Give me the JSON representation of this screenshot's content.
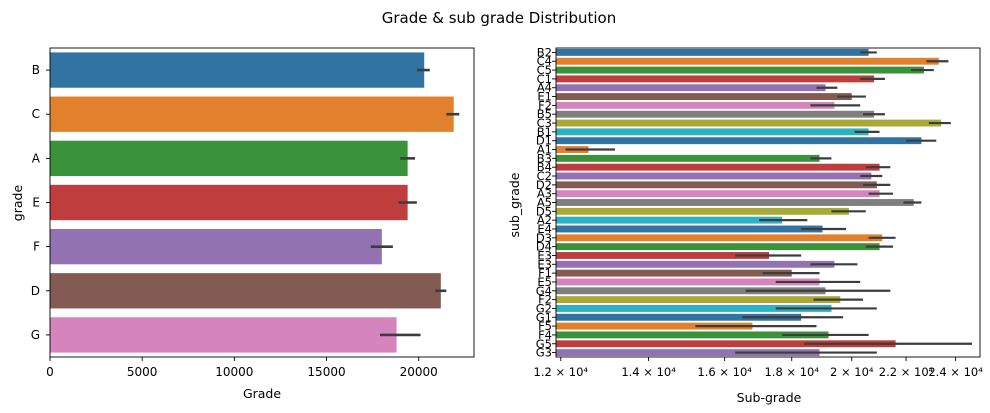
{
  "figure_title": "Grade & sub grade Distribution",
  "chart_data": [
    {
      "type": "bar",
      "orientation": "horizontal",
      "categories": [
        "B",
        "C",
        "A",
        "E",
        "F",
        "D",
        "G"
      ],
      "values": [
        20300,
        21900,
        19400,
        19400,
        18000,
        21200,
        18800
      ],
      "error_low": [
        19900,
        21500,
        19000,
        18900,
        17400,
        20900,
        17900
      ],
      "error_high": [
        20600,
        22200,
        19800,
        19900,
        18600,
        21500,
        20100
      ],
      "colors": [
        "#3274a1",
        "#e1812c",
        "#3a923a",
        "#c03d3e",
        "#9372b2",
        "#845b53",
        "#d684bd"
      ],
      "xlabel": "Grade",
      "ylabel": "grade",
      "xlim": [
        0,
        23000
      ],
      "xticks": [
        0,
        5000,
        10000,
        15000,
        20000
      ],
      "xtick_labels": [
        "0",
        "5000",
        "10000",
        "15000",
        "20000"
      ],
      "xscale": "linear",
      "grid": false
    },
    {
      "type": "bar",
      "orientation": "horizontal",
      "categories": [
        "B2",
        "C4",
        "C5",
        "C1",
        "A4",
        "E1",
        "F2",
        "B5",
        "C3",
        "B1",
        "D1",
        "A1",
        "B3",
        "B4",
        "C2",
        "D2",
        "A3",
        "A5",
        "D5",
        "A2",
        "E4",
        "D3",
        "D4",
        "E3",
        "E3",
        "F1",
        "E5",
        "G4",
        "F2",
        "G2",
        "G1",
        "F5",
        "F4",
        "G5",
        "G3"
      ],
      "values": [
        20600,
        23300,
        22700,
        20800,
        19100,
        20000,
        19400,
        20800,
        23400,
        20600,
        22600,
        12600,
        18900,
        21000,
        20700,
        20900,
        21000,
        22300,
        19900,
        17700,
        19000,
        21100,
        21000,
        17300,
        19400,
        18000,
        18900,
        19100,
        19600,
        19300,
        18300,
        16800,
        19200,
        21600,
        18900
      ],
      "error_low": [
        20300,
        22800,
        22200,
        20300,
        18800,
        19500,
        18600,
        20400,
        22900,
        20100,
        22000,
        12100,
        18600,
        20500,
        20300,
        20400,
        20600,
        21900,
        19300,
        17000,
        18300,
        20600,
        20500,
        16300,
        18600,
        17100,
        17500,
        16600,
        18700,
        17500,
        16500,
        15200,
        17700,
        18400,
        16300
      ],
      "error_high": [
        20900,
        23700,
        23100,
        21200,
        19500,
        20500,
        20300,
        21200,
        23800,
        21000,
        23200,
        13200,
        19300,
        21400,
        21100,
        21400,
        21500,
        22600,
        20500,
        18500,
        19800,
        21600,
        21500,
        18300,
        20200,
        18900,
        20300,
        21400,
        20400,
        20900,
        19700,
        18800,
        20600,
        24700,
        20900
      ],
      "colors": [
        "#3274a1",
        "#e1812c",
        "#3a923a",
        "#c03d3e",
        "#9372b2",
        "#845b53",
        "#d684bd",
        "#7f7f7f",
        "#a9aa35",
        "#2eb1c2"
      ],
      "xlabel": "Sub-grade",
      "ylabel": "sub_grade",
      "xlim": [
        11900,
        25050
      ],
      "xticks": [
        12000,
        14000,
        16000,
        18000,
        20000,
        22000,
        24000
      ],
      "xtick_labels": [
        "1.2 × 10⁴",
        "1.4 × 10⁴",
        "1.6 × 10⁴",
        "1.8 × 10⁴",
        "2 × 10⁴",
        "2.2 × 10⁴",
        "2.4 × 10⁴"
      ],
      "xscale": "log",
      "grid": false
    }
  ]
}
